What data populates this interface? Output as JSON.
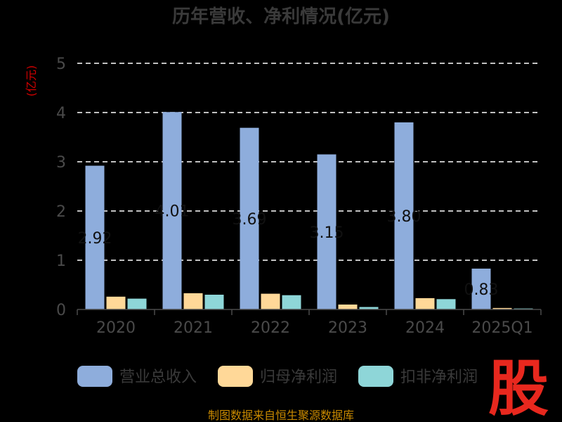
{
  "chart_data": {
    "type": "bar",
    "title": "历年营收、净利情况(亿元)",
    "ylabel": "(亿元)",
    "ylim": [
      0,
      5
    ],
    "yticks": [
      0,
      1,
      2,
      3,
      4,
      5
    ],
    "grid": true,
    "categories": [
      "2020",
      "2021",
      "2022",
      "2023",
      "2024",
      "2025Q1"
    ],
    "series": [
      {
        "name": "营业总收入",
        "color": "#8eaddc",
        "values": [
          2.92,
          4.01,
          3.69,
          3.15,
          3.8,
          0.83
        ],
        "labels": [
          "2.92",
          "4.01",
          "3.69",
          "3.15",
          "3.80",
          "0.83"
        ]
      },
      {
        "name": "归母净利润",
        "color": "#ffd898",
        "values": [
          0.26,
          0.33,
          0.32,
          0.1,
          0.23,
          0.03
        ]
      },
      {
        "name": "扣非净利润",
        "color": "#8ed6d8",
        "values": [
          0.22,
          0.3,
          0.29,
          0.05,
          0.21,
          0.02
        ]
      }
    ],
    "legend_position": "bottom"
  },
  "footer": {
    "source": "制图数据来自恒生聚源数据库"
  },
  "logo": {
    "text": "股"
  }
}
